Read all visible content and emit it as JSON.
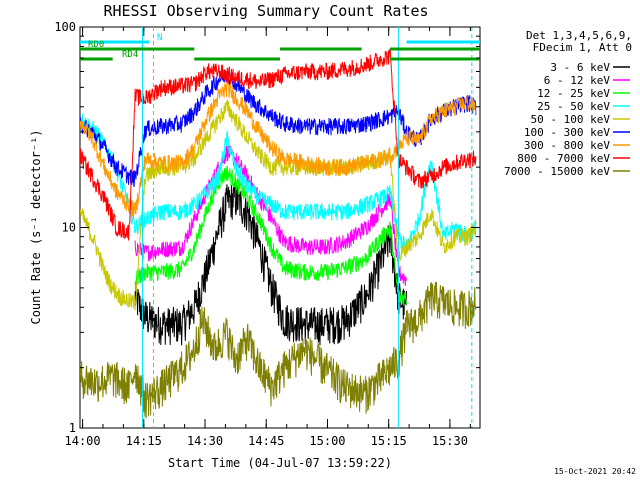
{
  "chart_data": {
    "type": "line",
    "title": "RHESSI Observing Summary Count Rates",
    "xlabel": "Start Time (04-Jul-07 13:59:22)",
    "ylabel": "Count Rate (s⁻¹ detector⁻¹)",
    "xlim_minutes": [
      0,
      98
    ],
    "ylim": [
      1,
      100
    ],
    "yscale": "log",
    "x_ticks": [
      "14:00",
      "14:15",
      "14:30",
      "14:45",
      "15:00",
      "15:15",
      "15:30"
    ],
    "y_ticks": [
      "1",
      "10",
      "100"
    ],
    "legend_header": [
      "Det 1,3,4,5,6,9,",
      "FDecim 1, Att 0"
    ],
    "legend_position": "right",
    "timestamp": "15-Oct-2021 20:42",
    "flags": [
      {
        "name": "N",
        "color": "#00e5ff",
        "segments": [
          [
            0,
            17
          ],
          [
            80,
            98
          ]
        ]
      },
      {
        "name": "RD0",
        "color": "#00a000",
        "segments": [
          [
            0,
            28
          ],
          [
            49,
            69
          ],
          [
            76,
            98
          ]
        ]
      },
      {
        "name": "RD4",
        "color": "#00a000",
        "segments": [
          [
            0,
            8
          ],
          [
            28,
            49
          ],
          [
            76,
            98
          ]
        ]
      }
    ],
    "vertical_lines": [
      {
        "x": 15.3,
        "color": "#00e5ff",
        "style": "solid"
      },
      {
        "x": 18.0,
        "color": "#00e5ff",
        "style": "dashed"
      },
      {
        "x": 78.0,
        "color": "#00e5ff",
        "style": "solid"
      },
      {
        "x": 96.0,
        "color": "#00e5ff",
        "style": "dashed"
      }
    ],
    "series": [
      {
        "name": "3 - 6 keV",
        "color": "#000000",
        "x": [
          13.5,
          16,
          20,
          25,
          28,
          31,
          34,
          36,
          38,
          41,
          44,
          47,
          50,
          55,
          60,
          65,
          70,
          74,
          76,
          78,
          80
        ],
        "y": [
          4.5,
          3.6,
          3.3,
          3.3,
          4.0,
          6.0,
          10.0,
          13.5,
          14.0,
          12.0,
          8.0,
          5.0,
          3.5,
          3.3,
          3.3,
          3.4,
          4.5,
          7.0,
          9.0,
          4.5,
          4.0
        ]
      },
      {
        "name": "6 - 12 keV",
        "color": "#ff00ff",
        "x": [
          13.5,
          16,
          20,
          25,
          28,
          31,
          34,
          36,
          38,
          41,
          44,
          47,
          50,
          55,
          60,
          65,
          70,
          74,
          76,
          78,
          80
        ],
        "y": [
          8.0,
          7.5,
          7.8,
          8.0,
          11.0,
          15.0,
          20.0,
          24.0,
          22.0,
          18.0,
          14.0,
          11.0,
          8.5,
          8.0,
          8.0,
          8.5,
          10.0,
          12.5,
          14.0,
          6.0,
          5.5
        ]
      },
      {
        "name": "12 - 25 keV",
        "color": "#00ff00",
        "x": [
          13.5,
          16,
          20,
          25,
          28,
          31,
          34,
          36,
          38,
          41,
          44,
          47,
          50,
          55,
          60,
          65,
          70,
          74,
          76,
          78,
          80
        ],
        "y": [
          5.5,
          6.0,
          6.0,
          6.2,
          8.0,
          12.0,
          17.0,
          19.0,
          17.0,
          14.0,
          11.0,
          8.0,
          6.3,
          6.0,
          6.0,
          6.3,
          7.0,
          9.0,
          10.0,
          4.5,
          4.5
        ]
      },
      {
        "name": "25 - 50 keV",
        "color": "#00ffff",
        "x": [
          0,
          4,
          8,
          12,
          13.5,
          16,
          20,
          25,
          28,
          31,
          34,
          36,
          38,
          41,
          44,
          47,
          50,
          55,
          60,
          65,
          70,
          74,
          76,
          78,
          80,
          83,
          86,
          89,
          92,
          95,
          97
        ],
        "y": [
          35.0,
          30.0,
          22.0,
          13.0,
          10.0,
          11.0,
          12.0,
          12.0,
          13.0,
          15.0,
          18.0,
          28.0,
          20.0,
          16.0,
          14.0,
          13.0,
          12.0,
          12.0,
          12.0,
          12.0,
          13.0,
          14.0,
          15.0,
          9.0,
          8.0,
          11.0,
          22.0,
          9.0,
          10.0,
          9.0,
          10.0
        ]
      },
      {
        "name": "50 - 100 keV",
        "color": "#c8c800",
        "x": [
          0,
          2,
          4,
          6,
          8,
          10,
          12,
          13.5,
          16,
          20,
          25,
          28,
          31,
          34,
          36,
          38,
          41,
          44,
          47,
          50,
          55,
          60,
          65,
          70,
          74,
          76,
          78,
          80,
          83,
          86,
          89,
          92,
          95,
          97
        ],
        "y": [
          12.0,
          10.0,
          8.0,
          6.0,
          5.0,
          4.5,
          4.3,
          4.2,
          18.0,
          20.0,
          20.0,
          22.0,
          28.0,
          35.0,
          40.0,
          35.0,
          28.0,
          23.0,
          20.0,
          20.0,
          20.0,
          20.0,
          20.0,
          21.0,
          22.0,
          23.0,
          7.0,
          8.0,
          9.0,
          12.0,
          8.0,
          9.0,
          9.0,
          10.0
        ]
      },
      {
        "name": "100 - 300 keV",
        "color": "#0000ff",
        "x": [
          0,
          3,
          6,
          9,
          12,
          13.5,
          16,
          20,
          25,
          28,
          31,
          34,
          36,
          38,
          41,
          44,
          47,
          50,
          55,
          60,
          65,
          70,
          74,
          76,
          78,
          80,
          83,
          86,
          89,
          92,
          95,
          97
        ],
        "y": [
          33.0,
          30.0,
          25.0,
          20.0,
          18.0,
          17.5,
          31.0,
          32.0,
          33.0,
          38.0,
          47.0,
          55.0,
          58.0,
          53.0,
          45.0,
          40.0,
          36.0,
          33.0,
          32.0,
          32.0,
          32.0,
          33.0,
          35.0,
          36.0,
          38.0,
          30.0,
          27.0,
          35.0,
          38.0,
          40.0,
          42.0,
          40.0
        ]
      },
      {
        "name": "300 - 800 keV",
        "color": "#ff9900",
        "x": [
          0,
          3,
          6,
          9,
          12,
          13.5,
          16,
          20,
          25,
          28,
          31,
          34,
          36,
          38,
          41,
          44,
          47,
          50,
          55,
          60,
          65,
          70,
          74,
          76,
          78,
          80,
          83,
          86,
          89,
          92,
          95,
          97
        ],
        "y": [
          34.0,
          28.0,
          20.0,
          15.0,
          13.0,
          12.0,
          22.0,
          21.0,
          21.0,
          25.0,
          35.0,
          45.0,
          50.0,
          45.0,
          38.0,
          30.0,
          25.0,
          22.0,
          21.0,
          20.0,
          20.0,
          21.0,
          22.0,
          23.0,
          25.0,
          28.0,
          27.0,
          35.0,
          38.0,
          40.0,
          42.0,
          40.0
        ]
      },
      {
        "name": "800 - 7000 keV",
        "color": "#ff0000",
        "x": [
          0,
          3,
          6,
          9,
          12,
          13.5,
          16,
          20,
          25,
          28,
          31,
          34,
          36,
          38,
          41,
          44,
          47,
          50,
          55,
          60,
          65,
          70,
          74,
          76,
          78,
          80,
          83,
          86,
          89,
          92,
          95,
          97
        ],
        "y": [
          23.0,
          18.0,
          14.0,
          10.0,
          9.5,
          45.0,
          44.0,
          50.0,
          51.0,
          52.0,
          60.0,
          60.0,
          58.0,
          56.0,
          55.0,
          53.0,
          55.0,
          58.0,
          60.0,
          60.0,
          62.0,
          65.0,
          70.0,
          72.0,
          22.0,
          20.0,
          17.0,
          18.0,
          20.0,
          21.0,
          22.0,
          22.0
        ]
      },
      {
        "name": "7000 - 15000 keV",
        "color": "#808000",
        "x": [
          0,
          4,
          8,
          12,
          13.5,
          16,
          20,
          25,
          28,
          30,
          33,
          36,
          38,
          41,
          44,
          47,
          50,
          55,
          60,
          65,
          70,
          74,
          76,
          78,
          80,
          83,
          86,
          89,
          92,
          95,
          97
        ],
        "y": [
          1.8,
          1.7,
          1.8,
          1.6,
          2.0,
          1.4,
          1.6,
          2.0,
          2.5,
          3.5,
          2.5,
          3.0,
          2.2,
          2.8,
          2.0,
          1.6,
          2.0,
          2.5,
          2.0,
          1.6,
          1.5,
          1.8,
          2.0,
          2.2,
          3.2,
          3.5,
          4.5,
          4.3,
          4.0,
          4.0,
          4.2
        ]
      }
    ]
  }
}
